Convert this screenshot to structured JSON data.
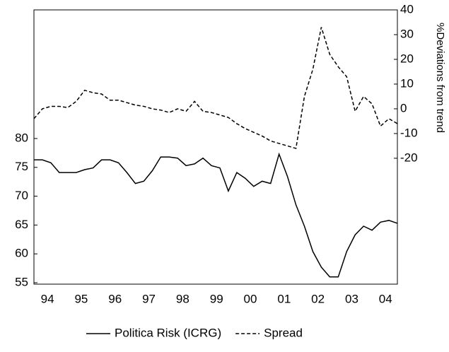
{
  "chart_data": {
    "type": "line",
    "x": [
      1994,
      1994.25,
      1994.5,
      1994.75,
      1995,
      1995.25,
      1995.5,
      1995.75,
      1996,
      1996.25,
      1996.5,
      1996.75,
      1997,
      1997.25,
      1997.5,
      1997.75,
      1998,
      1998.25,
      1998.5,
      1998.75,
      1999,
      1999.25,
      1999.5,
      1999.75,
      2000,
      2000.25,
      2000.5,
      2000.75,
      2001,
      2001.25,
      2001.5,
      2001.75,
      2002,
      2002.25,
      2002.5,
      2002.75,
      2003,
      2003.25,
      2003.5,
      2003.75,
      2004,
      2004.25,
      2004.5,
      2004.75
    ],
    "series": [
      {
        "name": "Politica Risk (ICRG)",
        "color": "#000000",
        "line_style": "solid",
        "values": [
          76.3,
          76.3,
          75.8,
          74.1,
          74.1,
          74.1,
          74.6,
          74.9,
          76.3,
          76.3,
          75.8,
          74.1,
          72.2,
          72.6,
          74.4,
          76.8,
          76.8,
          76.6,
          75.3,
          75.6,
          76.6,
          75.3,
          74.9,
          70.9,
          74.1,
          73.1,
          71.7,
          72.6,
          72.2,
          77.3,
          73.4,
          68.5,
          64.8,
          60.4,
          57.7,
          56.0,
          56.0,
          60.4,
          63.3,
          64.8,
          64.1,
          65.5,
          65.8,
          65.3
        ]
      },
      {
        "name": "Spread",
        "color": "#000000",
        "line_style": "dashed",
        "axis": "y2",
        "values": [
          -4,
          0,
          1,
          1,
          0.5,
          3,
          7.5,
          6.5,
          6,
          3.5,
          3.5,
          2.5,
          1.5,
          1,
          0,
          -0.5,
          -1.5,
          0,
          -1,
          3,
          -1,
          -1.5,
          -2.5,
          -3.5,
          -6,
          -8,
          -9.5,
          -11,
          -13,
          -14,
          -15,
          -16,
          5,
          16,
          33,
          22,
          17,
          13,
          -1,
          5,
          2,
          -7,
          -4,
          -6
        ]
      }
    ],
    "xlim": [
      1994,
      2004.75
    ],
    "xticks": [
      {
        "value": 1994.4,
        "label": "94"
      },
      {
        "value": 1995.4,
        "label": "95"
      },
      {
        "value": 1996.4,
        "label": "96"
      },
      {
        "value": 1997.4,
        "label": "97"
      },
      {
        "value": 1998.4,
        "label": "98"
      },
      {
        "value": 1999.4,
        "label": "99"
      },
      {
        "value": 2000.4,
        "label": "00"
      },
      {
        "value": 2001.4,
        "label": "01"
      },
      {
        "value": 2002.4,
        "label": "02"
      },
      {
        "value": 2003.4,
        "label": "03"
      },
      {
        "value": 2004.4,
        "label": "04"
      }
    ],
    "ylim": [
      54.75,
      102.3
    ],
    "yticks": [
      55,
      60,
      65,
      70,
      75,
      80
    ],
    "y2lim": [
      -70.9,
      40
    ],
    "y2ticks": [
      -20,
      -10,
      0,
      10,
      20,
      30,
      40
    ],
    "y2label": "%Deviations from trend",
    "legend": "bottom"
  }
}
